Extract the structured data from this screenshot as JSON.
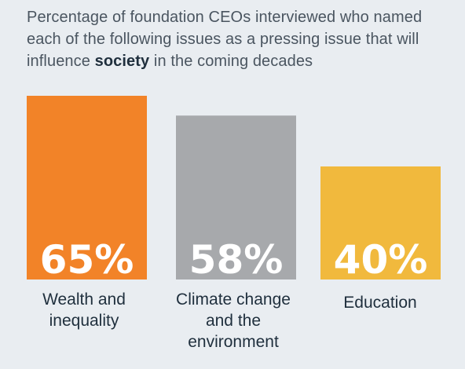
{
  "title": {
    "before": "Percentage of foundation CEOs interviewed who named each of the following issues as a pressing issue that will influence ",
    "bold": "society",
    "after": " in the coming decades"
  },
  "chart_data": {
    "type": "bar",
    "categories": [
      "Wealth and\ninequality",
      "Climate change\nand the\nenvironment",
      "Education"
    ],
    "values": [
      65,
      58,
      40
    ],
    "value_labels": [
      "65%",
      "58%",
      "40%"
    ],
    "colors": [
      "#f28328",
      "#a7a9ac",
      "#f1b93d"
    ],
    "ylim": [
      0,
      100
    ],
    "grid": false,
    "legend": "none"
  }
}
